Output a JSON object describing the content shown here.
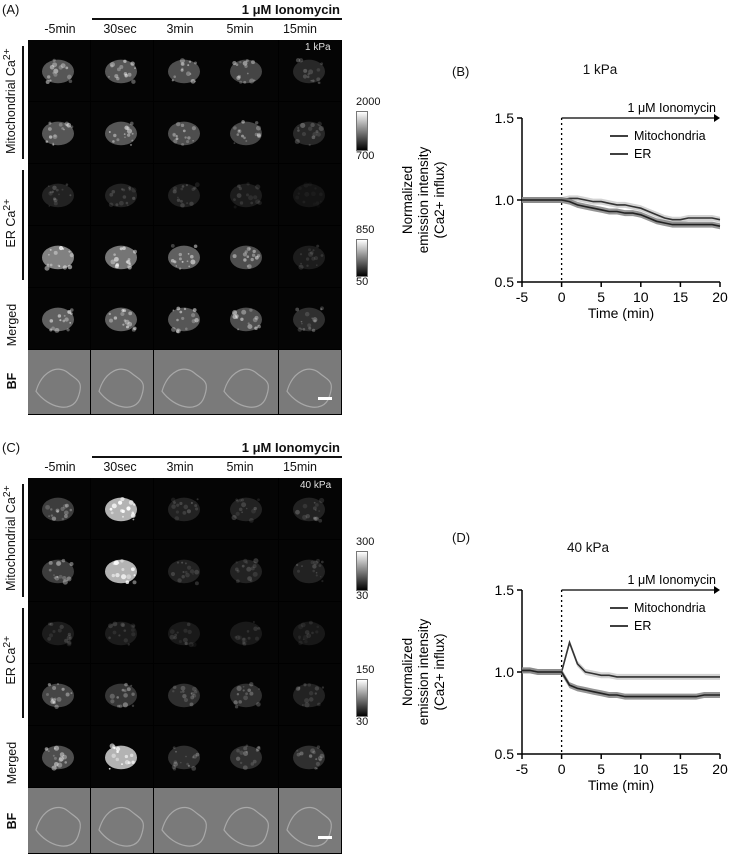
{
  "panels": [
    {
      "label": "(A)",
      "treatment": "1 μM Ionomycin",
      "columns": [
        "-5min",
        "30sec",
        "3min",
        "5min",
        "15min"
      ],
      "stiffness_tag": "1 kPa",
      "row_groups": {
        "mito": "Mitochondrial Ca2+",
        "er": "ER Ca2+",
        "merged": "Merged",
        "bf": "BF"
      },
      "colorbar_mito": {
        "max": "2000",
        "min": "700"
      },
      "colorbar_er": {
        "max": "850",
        "min": "50"
      },
      "brightness": {
        "mito": [
          0.55,
          0.55,
          0.5,
          0.45,
          0.25
        ],
        "er_top": [
          0.2,
          0.2,
          0.18,
          0.15,
          0.05
        ],
        "er_bottom": [
          0.75,
          0.7,
          0.6,
          0.5,
          0.15
        ],
        "merged": [
          0.6,
          0.6,
          0.55,
          0.5,
          0.3
        ]
      }
    },
    {
      "label": "(C)",
      "treatment": "1 μM Ionomycin",
      "columns": [
        "-5min",
        "30sec",
        "3min",
        "5min",
        "15min"
      ],
      "stiffness_tag": "40 kPa",
      "row_groups": {
        "mito": "Mitochondrial Ca2+",
        "er": "ER Ca2+",
        "merged": "Merged",
        "bf": "BF"
      },
      "colorbar_mito": {
        "max": "300",
        "min": "30"
      },
      "colorbar_er": {
        "max": "150",
        "min": "30"
      },
      "brightness": {
        "mito": [
          0.4,
          0.95,
          0.2,
          0.2,
          0.2
        ],
        "er_top": [
          0.15,
          0.15,
          0.12,
          0.12,
          0.1
        ],
        "er_bottom": [
          0.45,
          0.35,
          0.3,
          0.3,
          0.2
        ],
        "merged": [
          0.5,
          0.95,
          0.3,
          0.3,
          0.3
        ]
      }
    }
  ],
  "chart_data": [
    {
      "label": "(B)",
      "type": "line",
      "title": "1 kPa",
      "xlabel": "Time (min)",
      "ylabel_line1": "Normalized",
      "ylabel_line2": "emission intensity",
      "ylabel_line3": "(Ca2+ influx)",
      "xlim": [
        -5,
        20
      ],
      "ylim": [
        0.5,
        1.5
      ],
      "xticks": [
        "-5",
        "0",
        "5",
        "10",
        "15",
        "20"
      ],
      "yticks": [
        "0.5",
        "1.0",
        "1.5"
      ],
      "annotation": "1 μM Ionomycin",
      "x": [
        -5,
        -4,
        -3,
        -2,
        -1,
        0,
        1,
        2,
        3,
        4,
        5,
        6,
        7,
        8,
        9,
        10,
        11,
        12,
        13,
        14,
        15,
        16,
        17,
        18,
        19,
        20
      ],
      "series": [
        {
          "name": "Mitochondria",
          "values": [
            1.0,
            1.0,
            1.0,
            1.0,
            1.0,
            1.0,
            1.01,
            1.01,
            1.0,
            0.99,
            0.99,
            0.98,
            0.97,
            0.97,
            0.96,
            0.95,
            0.93,
            0.91,
            0.89,
            0.88,
            0.88,
            0.89,
            0.89,
            0.89,
            0.89,
            0.88
          ]
        },
        {
          "name": "ER",
          "values": [
            1.0,
            1.0,
            1.0,
            1.0,
            1.0,
            1.0,
            0.99,
            0.97,
            0.96,
            0.95,
            0.94,
            0.93,
            0.93,
            0.92,
            0.92,
            0.91,
            0.89,
            0.87,
            0.86,
            0.85,
            0.85,
            0.85,
            0.85,
            0.85,
            0.85,
            0.84
          ]
        }
      ],
      "legend": "top-right"
    },
    {
      "label": "(D)",
      "type": "line",
      "title": "40 kPa",
      "xlabel": "Time (min)",
      "ylabel_line1": "Normalized",
      "ylabel_line2": "emission intensity",
      "ylabel_line3": "(Ca2+ influx)",
      "xlim": [
        -5,
        20
      ],
      "ylim": [
        0.5,
        1.5
      ],
      "xticks": [
        "-5",
        "0",
        "5",
        "10",
        "15",
        "20"
      ],
      "yticks": [
        "0.5",
        "1.0",
        "1.5"
      ],
      "annotation": "1 μM Ionomycin",
      "x": [
        -5,
        -4,
        -3,
        -2,
        -1,
        0,
        1,
        2,
        3,
        4,
        5,
        6,
        7,
        8,
        9,
        10,
        11,
        12,
        13,
        14,
        15,
        16,
        17,
        18,
        19,
        20
      ],
      "series": [
        {
          "name": "Mitochondria",
          "values": [
            1.01,
            1.01,
            1.0,
            1.0,
            1.0,
            1.0,
            1.18,
            1.05,
            1.0,
            0.99,
            0.98,
            0.98,
            0.97,
            0.97,
            0.97,
            0.97,
            0.97,
            0.97,
            0.97,
            0.97,
            0.97,
            0.97,
            0.97,
            0.97,
            0.97,
            0.97
          ]
        },
        {
          "name": "ER",
          "values": [
            1.01,
            1.01,
            1.0,
            1.0,
            1.0,
            1.0,
            0.92,
            0.9,
            0.89,
            0.88,
            0.87,
            0.86,
            0.86,
            0.85,
            0.85,
            0.85,
            0.85,
            0.85,
            0.85,
            0.85,
            0.85,
            0.85,
            0.85,
            0.86,
            0.86,
            0.86
          ]
        }
      ],
      "legend": "top-right"
    }
  ]
}
